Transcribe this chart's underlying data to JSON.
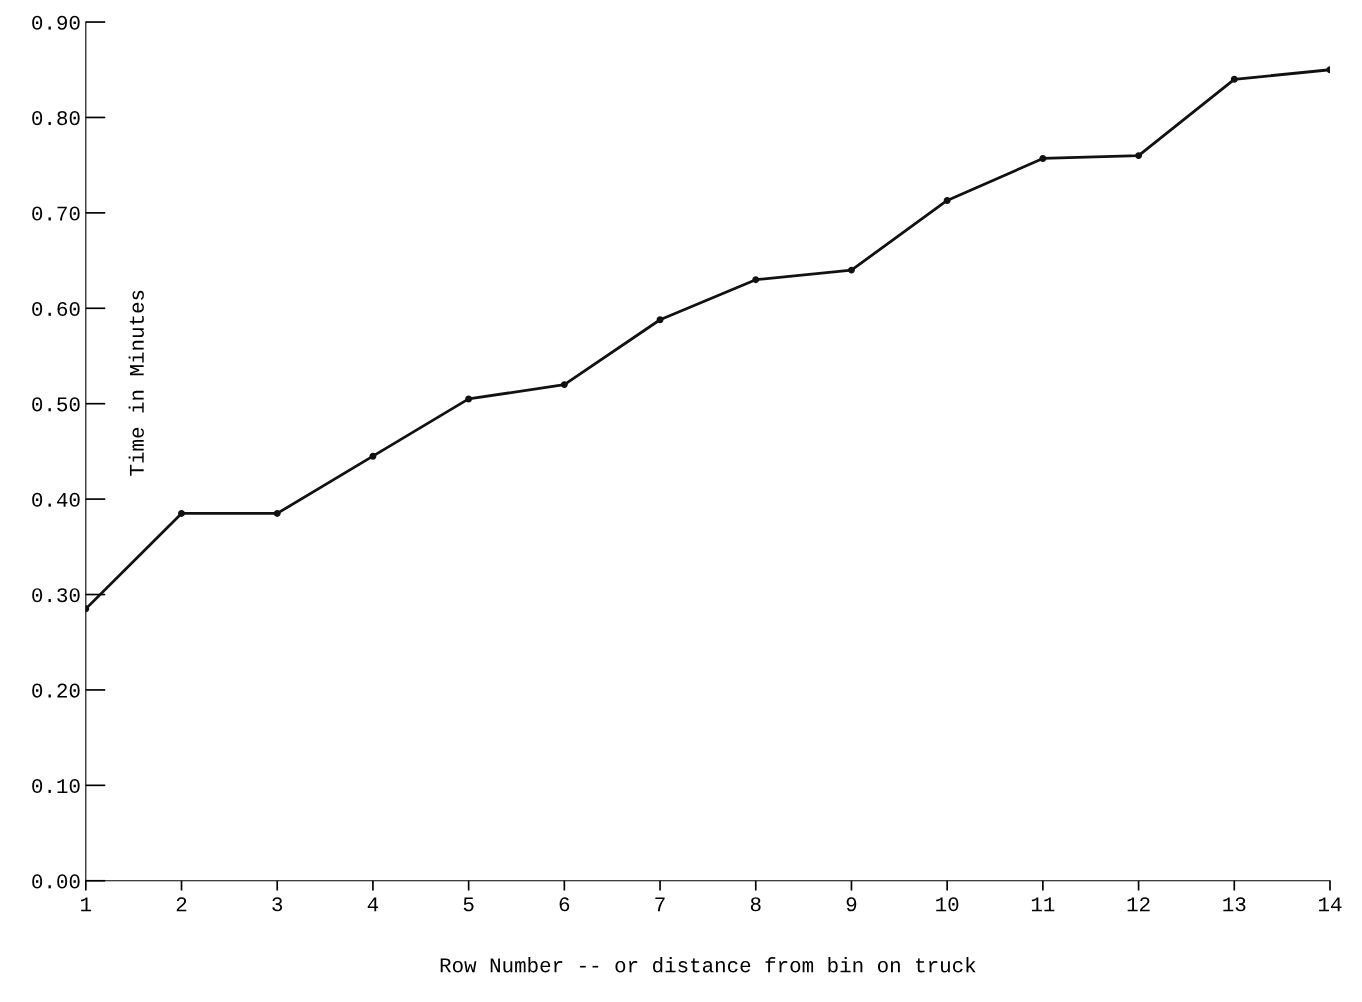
{
  "chart_data": {
    "type": "line",
    "xlabel": "Row Number -- or distance from bin on truck",
    "ylabel": "Time in Minutes",
    "x": [
      1,
      2,
      3,
      4,
      5,
      6,
      7,
      8,
      9,
      10,
      11,
      12,
      13,
      14
    ],
    "series": [
      {
        "color": "#111111",
        "values": [
          0.285,
          0.385,
          0.385,
          0.445,
          0.505,
          0.52,
          0.588,
          0.63,
          0.64,
          0.713,
          0.757,
          0.76,
          0.84,
          0.85
        ]
      }
    ],
    "xlim": [
      1,
      14
    ],
    "xticks": [
      1,
      2,
      3,
      4,
      5,
      6,
      7,
      8,
      9,
      10,
      11,
      12,
      13,
      14
    ],
    "ylim": [
      0,
      0.9
    ],
    "yticks": [
      {
        "value": 0,
        "label": "0.00"
      },
      {
        "value": 0.1,
        "label": "0.10"
      },
      {
        "value": 0.2,
        "label": "0.20"
      },
      {
        "value": 0.3,
        "label": "0.30"
      },
      {
        "value": 0.4,
        "label": "0.40"
      },
      {
        "value": 0.5,
        "label": "0.50"
      },
      {
        "value": 0.6,
        "label": "0.60"
      },
      {
        "value": 0.7,
        "label": "0.70"
      },
      {
        "value": 0.8,
        "label": "0.80"
      },
      {
        "value": 0.9,
        "label": "0.90"
      }
    ],
    "grid": false,
    "legend": false,
    "marker": "circle",
    "line_style": "solid"
  }
}
